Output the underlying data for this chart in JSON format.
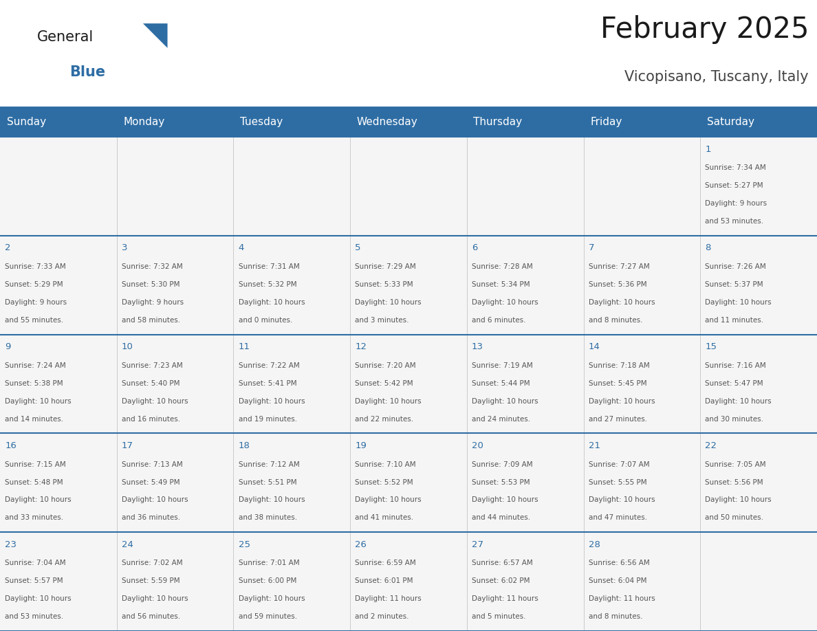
{
  "title": "February 2025",
  "subtitle": "Vicopisano, Tuscany, Italy",
  "days_of_week": [
    "Sunday",
    "Monday",
    "Tuesday",
    "Wednesday",
    "Thursday",
    "Friday",
    "Saturday"
  ],
  "header_bg": "#2E6DA4",
  "header_text_color": "#FFFFFF",
  "cell_bg": "#F5F5F5",
  "grid_line_color": "#2E6DA4",
  "day_number_color": "#2E6DA4",
  "cell_text_color": "#555555",
  "title_color": "#1A1A1A",
  "subtitle_color": "#444444",
  "logo_general_color": "#1A1A1A",
  "logo_blue_color": "#2E6DA4",
  "calendar_data": [
    [
      null,
      null,
      null,
      null,
      null,
      null,
      {
        "day": "1",
        "line1": "Sunrise: 7:34 AM",
        "line2": "Sunset: 5:27 PM",
        "line3": "Daylight: 9 hours",
        "line4": "and 53 minutes."
      }
    ],
    [
      {
        "day": "2",
        "line1": "Sunrise: 7:33 AM",
        "line2": "Sunset: 5:29 PM",
        "line3": "Daylight: 9 hours",
        "line4": "and 55 minutes."
      },
      {
        "day": "3",
        "line1": "Sunrise: 7:32 AM",
        "line2": "Sunset: 5:30 PM",
        "line3": "Daylight: 9 hours",
        "line4": "and 58 minutes."
      },
      {
        "day": "4",
        "line1": "Sunrise: 7:31 AM",
        "line2": "Sunset: 5:32 PM",
        "line3": "Daylight: 10 hours",
        "line4": "and 0 minutes."
      },
      {
        "day": "5",
        "line1": "Sunrise: 7:29 AM",
        "line2": "Sunset: 5:33 PM",
        "line3": "Daylight: 10 hours",
        "line4": "and 3 minutes."
      },
      {
        "day": "6",
        "line1": "Sunrise: 7:28 AM",
        "line2": "Sunset: 5:34 PM",
        "line3": "Daylight: 10 hours",
        "line4": "and 6 minutes."
      },
      {
        "day": "7",
        "line1": "Sunrise: 7:27 AM",
        "line2": "Sunset: 5:36 PM",
        "line3": "Daylight: 10 hours",
        "line4": "and 8 minutes."
      },
      {
        "day": "8",
        "line1": "Sunrise: 7:26 AM",
        "line2": "Sunset: 5:37 PM",
        "line3": "Daylight: 10 hours",
        "line4": "and 11 minutes."
      }
    ],
    [
      {
        "day": "9",
        "line1": "Sunrise: 7:24 AM",
        "line2": "Sunset: 5:38 PM",
        "line3": "Daylight: 10 hours",
        "line4": "and 14 minutes."
      },
      {
        "day": "10",
        "line1": "Sunrise: 7:23 AM",
        "line2": "Sunset: 5:40 PM",
        "line3": "Daylight: 10 hours",
        "line4": "and 16 minutes."
      },
      {
        "day": "11",
        "line1": "Sunrise: 7:22 AM",
        "line2": "Sunset: 5:41 PM",
        "line3": "Daylight: 10 hours",
        "line4": "and 19 minutes."
      },
      {
        "day": "12",
        "line1": "Sunrise: 7:20 AM",
        "line2": "Sunset: 5:42 PM",
        "line3": "Daylight: 10 hours",
        "line4": "and 22 minutes."
      },
      {
        "day": "13",
        "line1": "Sunrise: 7:19 AM",
        "line2": "Sunset: 5:44 PM",
        "line3": "Daylight: 10 hours",
        "line4": "and 24 minutes."
      },
      {
        "day": "14",
        "line1": "Sunrise: 7:18 AM",
        "line2": "Sunset: 5:45 PM",
        "line3": "Daylight: 10 hours",
        "line4": "and 27 minutes."
      },
      {
        "day": "15",
        "line1": "Sunrise: 7:16 AM",
        "line2": "Sunset: 5:47 PM",
        "line3": "Daylight: 10 hours",
        "line4": "and 30 minutes."
      }
    ],
    [
      {
        "day": "16",
        "line1": "Sunrise: 7:15 AM",
        "line2": "Sunset: 5:48 PM",
        "line3": "Daylight: 10 hours",
        "line4": "and 33 minutes."
      },
      {
        "day": "17",
        "line1": "Sunrise: 7:13 AM",
        "line2": "Sunset: 5:49 PM",
        "line3": "Daylight: 10 hours",
        "line4": "and 36 minutes."
      },
      {
        "day": "18",
        "line1": "Sunrise: 7:12 AM",
        "line2": "Sunset: 5:51 PM",
        "line3": "Daylight: 10 hours",
        "line4": "and 38 minutes."
      },
      {
        "day": "19",
        "line1": "Sunrise: 7:10 AM",
        "line2": "Sunset: 5:52 PM",
        "line3": "Daylight: 10 hours",
        "line4": "and 41 minutes."
      },
      {
        "day": "20",
        "line1": "Sunrise: 7:09 AM",
        "line2": "Sunset: 5:53 PM",
        "line3": "Daylight: 10 hours",
        "line4": "and 44 minutes."
      },
      {
        "day": "21",
        "line1": "Sunrise: 7:07 AM",
        "line2": "Sunset: 5:55 PM",
        "line3": "Daylight: 10 hours",
        "line4": "and 47 minutes."
      },
      {
        "day": "22",
        "line1": "Sunrise: 7:05 AM",
        "line2": "Sunset: 5:56 PM",
        "line3": "Daylight: 10 hours",
        "line4": "and 50 minutes."
      }
    ],
    [
      {
        "day": "23",
        "line1": "Sunrise: 7:04 AM",
        "line2": "Sunset: 5:57 PM",
        "line3": "Daylight: 10 hours",
        "line4": "and 53 minutes."
      },
      {
        "day": "24",
        "line1": "Sunrise: 7:02 AM",
        "line2": "Sunset: 5:59 PM",
        "line3": "Daylight: 10 hours",
        "line4": "and 56 minutes."
      },
      {
        "day": "25",
        "line1": "Sunrise: 7:01 AM",
        "line2": "Sunset: 6:00 PM",
        "line3": "Daylight: 10 hours",
        "line4": "and 59 minutes."
      },
      {
        "day": "26",
        "line1": "Sunrise: 6:59 AM",
        "line2": "Sunset: 6:01 PM",
        "line3": "Daylight: 11 hours",
        "line4": "and 2 minutes."
      },
      {
        "day": "27",
        "line1": "Sunrise: 6:57 AM",
        "line2": "Sunset: 6:02 PM",
        "line3": "Daylight: 11 hours",
        "line4": "and 5 minutes."
      },
      {
        "day": "28",
        "line1": "Sunrise: 6:56 AM",
        "line2": "Sunset: 6:04 PM",
        "line3": "Daylight: 11 hours",
        "line4": "and 8 minutes."
      },
      null
    ]
  ]
}
